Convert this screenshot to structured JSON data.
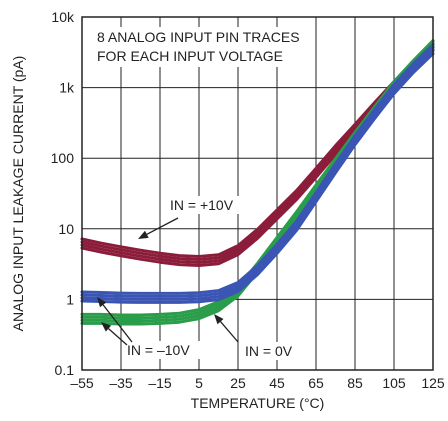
{
  "chart_data": {
    "type": "line",
    "xlabel": "TEMPERATURE (°C)",
    "ylabel": "ANALOG INPUT LEAKAGE CURRENT (pA)",
    "xlim": [
      -55,
      125
    ],
    "ylim": [
      0.1,
      10000
    ],
    "yscale": "log",
    "grid": true,
    "x_ticks": [
      -55,
      -35,
      -15,
      5,
      25,
      45,
      65,
      85,
      105,
      125
    ],
    "x_tick_labels": [
      "–55",
      "–35",
      "–15",
      "5",
      "25",
      "45",
      "65",
      "85",
      "105",
      "125"
    ],
    "y_ticks": [
      0.1,
      1,
      10,
      100,
      1000,
      10000
    ],
    "y_tick_labels": [
      "0.1",
      "1",
      "10",
      "100",
      "1k",
      "10k"
    ],
    "annotation": "8 ANALOG INPUT PIN TRACES\nFOR EACH INPUT VOLTAGE",
    "series": [
      {
        "name": "IN = +10V",
        "color": "#8b1d3b",
        "x": [
          -55,
          -45,
          -35,
          -25,
          -15,
          -5,
          5,
          15,
          25,
          35,
          45,
          55,
          65,
          75,
          85,
          95,
          105,
          115,
          125
        ],
        "y": [
          6.2,
          5.4,
          4.8,
          4.3,
          3.9,
          3.6,
          3.5,
          3.7,
          5.0,
          8.5,
          16,
          30,
          62,
          130,
          260,
          530,
          1050,
          2000,
          3900
        ]
      },
      {
        "name": "IN = 0V",
        "color": "#2a9d4a",
        "x": [
          -55,
          -45,
          -35,
          -25,
          -15,
          -5,
          5,
          15,
          25,
          35,
          45,
          55,
          65,
          75,
          85,
          95,
          105,
          115,
          125
        ],
        "y": [
          0.53,
          0.53,
          0.52,
          0.52,
          0.53,
          0.55,
          0.62,
          0.8,
          1.3,
          2.8,
          6.5,
          15,
          36,
          85,
          200,
          460,
          1050,
          2100,
          4000
        ]
      },
      {
        "name": "IN = –10V",
        "color": "#3a55b4",
        "x": [
          -55,
          -45,
          -35,
          -25,
          -15,
          -5,
          5,
          15,
          25,
          35,
          45,
          55,
          65,
          75,
          85,
          95,
          105,
          115,
          125
        ],
        "y": [
          1.1,
          1.08,
          1.06,
          1.05,
          1.05,
          1.05,
          1.07,
          1.15,
          1.5,
          2.6,
          5.2,
          11,
          28,
          72,
          180,
          420,
          950,
          1900,
          3500
        ]
      }
    ],
    "labels": {
      "plus10": "IN = +10V",
      "minus10": "IN = –10V",
      "zero": "IN = 0V"
    }
  }
}
